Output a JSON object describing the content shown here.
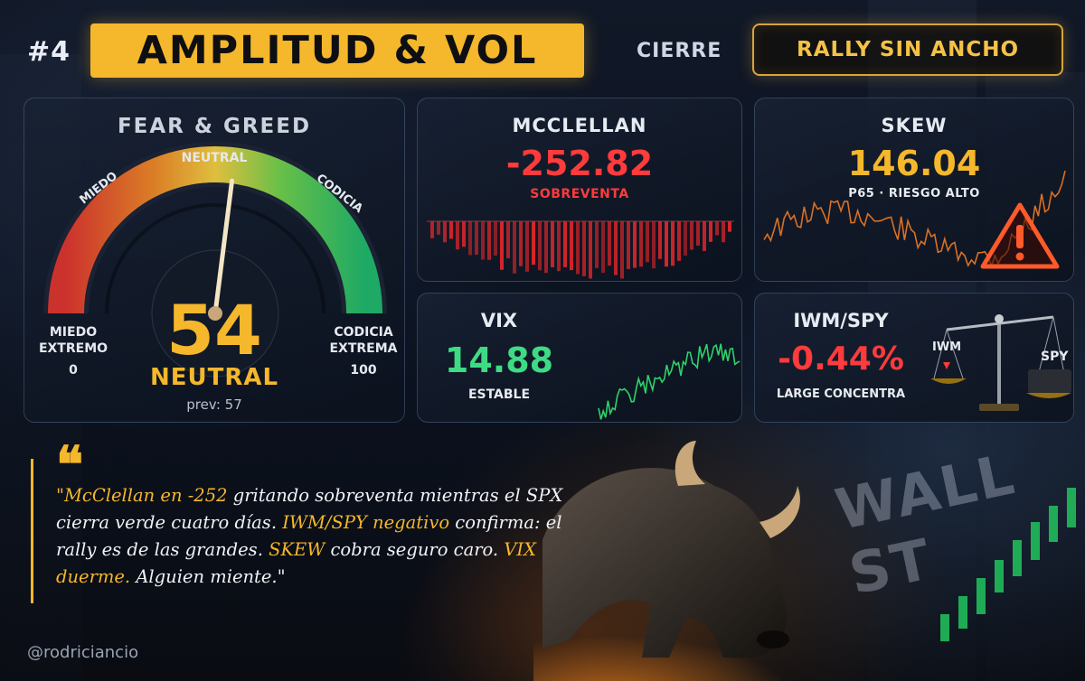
{
  "header": {
    "number": "#4",
    "title": "AMPLITUD & VOL",
    "session": "CIERRE",
    "badge": "RALLY SIN ANCHO"
  },
  "fear_greed": {
    "title": "FEAR & GREED",
    "value": "54",
    "value_number": 54,
    "label": "NEUTRAL",
    "prev": "prev: 57",
    "scale_top": "NEUTRAL",
    "scale_left": "MIEDO",
    "scale_right": "CODICIA",
    "extreme_left": [
      "MIEDO",
      "EXTREMO"
    ],
    "extreme_right": [
      "CODICIA",
      "EXTREMA"
    ],
    "min_label": "0",
    "max_label": "100"
  },
  "mcclellan": {
    "title": "MCCLELLAN",
    "value": "-252.82",
    "status": "SOBREVENTA"
  },
  "skew": {
    "title": "SKEW",
    "value": "146.04",
    "status": "P65 · RIESGO ALTO",
    "icon": "warning-triangle-icon"
  },
  "vix": {
    "title": "VIX",
    "value": "14.88",
    "status": "ESTABLE"
  },
  "iwm_spy": {
    "title": "IWM/SPY",
    "value": "-0.44%",
    "status": "LARGE CONCENTRA",
    "scale_left": "IWM",
    "scale_right": "SPY",
    "icon": "balance-scale-icon"
  },
  "quote": {
    "part1": "\"McClellan en -252",
    "part2": " gritando sobreventa mientras el SPX cierra verde cuatro días. ",
    "part3": "IWM/SPY negativo",
    "part4": " confirma: el rally es de las grandes. ",
    "part5": "SKEW",
    "part6": " cobra seguro caro. ",
    "part7": "VIX duerme.",
    "part8": " Alguien miente.\""
  },
  "footer": {
    "handle": "@rodriciancio"
  },
  "background": {
    "sign": "WALL ST"
  },
  "colors": {
    "accent": "#f5b72b",
    "negative": "#ff3b3b",
    "positive": "#3ddc84",
    "skew": "#f5b72b"
  }
}
